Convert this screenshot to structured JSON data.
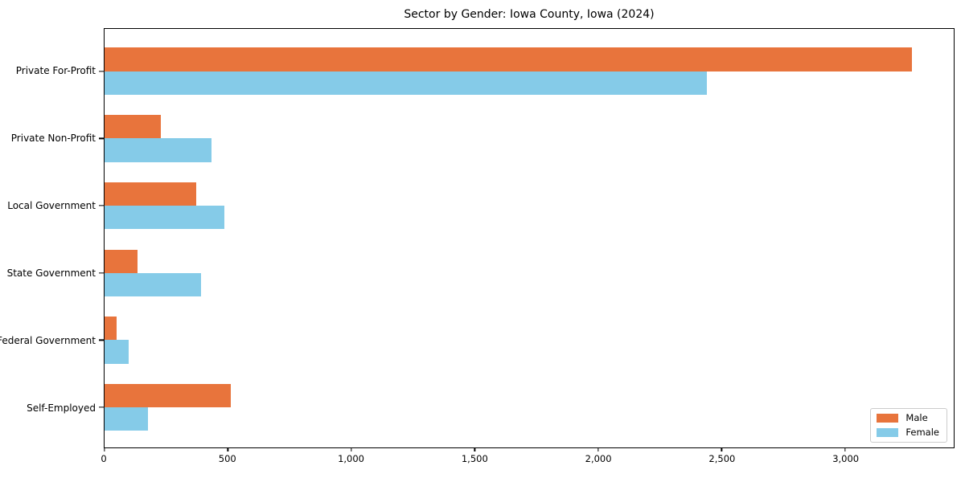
{
  "chart_data": {
    "type": "bar",
    "orientation": "horizontal",
    "title": "Sector by Gender: Iowa County, Iowa (2024)",
    "categories": [
      "Private For-Profit",
      "Private Non-Profit",
      "Local Government",
      "State Government",
      "Federal Government",
      "Self-Employed"
    ],
    "series": [
      {
        "name": "Male",
        "color": "#e8743c",
        "values": [
          3270,
          227,
          371,
          133,
          48,
          511
        ]
      },
      {
        "name": "Female",
        "color": "#85cbe8",
        "values": [
          2439,
          434,
          487,
          391,
          97,
          176
        ]
      }
    ],
    "xlabel": "",
    "ylabel": "",
    "xlim": [
      0,
      3440
    ],
    "xticks": [
      0,
      500,
      1000,
      1500,
      2000,
      2500,
      3000
    ],
    "xtick_labels": [
      "0",
      "500",
      "1,000",
      "1,500",
      "2,000",
      "2,500",
      "3,000"
    ],
    "grid": false,
    "legend_position": "lower right",
    "axis_color": "#000000"
  }
}
